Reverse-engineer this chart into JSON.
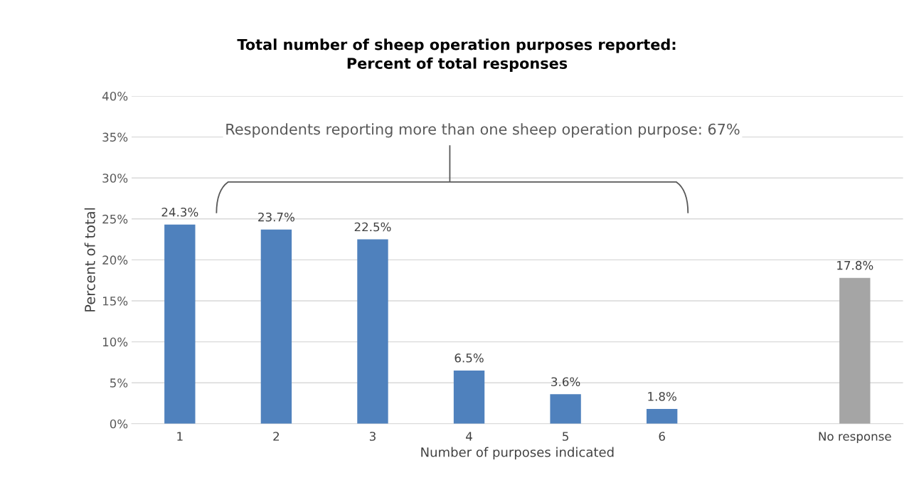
{
  "chart_data": {
    "type": "bar",
    "title": "Total number of sheep operation purposes reported:\nPercent of total responses",
    "xlabel": "Number of purposes indicated",
    "ylabel": "Percent of total",
    "categories": [
      "1",
      "2",
      "3",
      "4",
      "5",
      "6",
      null,
      "No response"
    ],
    "values": [
      24.3,
      23.7,
      22.5,
      6.5,
      3.6,
      1.8,
      null,
      17.8
    ],
    "colors": [
      "#4f81bd",
      "#4f81bd",
      "#4f81bd",
      "#4f81bd",
      "#4f81bd",
      "#4f81bd",
      "#4f81bd",
      "#a5a5a5"
    ],
    "value_labels": [
      "24.3%",
      "23.7%",
      "22.5%",
      "6.5%",
      "3.6%",
      "1.8%",
      null,
      "17.8%"
    ],
    "annotations": [
      "Respondents reporting more than one sheep operation purpose: 67%"
    ],
    "ylim": [
      0,
      40
    ],
    "yticks": [
      {
        "value": 0,
        "label": "0%"
      },
      {
        "value": 5,
        "label": "5%"
      },
      {
        "value": 10,
        "label": "10%"
      },
      {
        "value": 15,
        "label": "15%"
      },
      {
        "value": 20,
        "label": "20%"
      },
      {
        "value": 25,
        "label": "25%"
      },
      {
        "value": 30,
        "label": "30%"
      },
      {
        "value": 35,
        "label": "35%"
      },
      {
        "value": 40,
        "label": "40%"
      }
    ],
    "grid": "y",
    "legend": false
  }
}
